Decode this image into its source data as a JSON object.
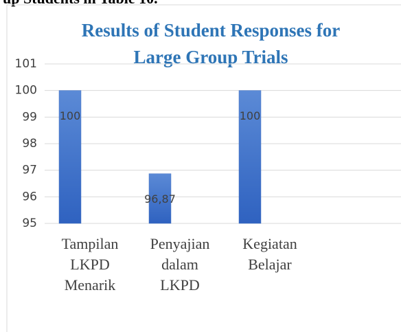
{
  "heading": "up Students in Table 10.",
  "chart_data": {
    "type": "bar",
    "title": [
      "Results of Student Responses for",
      "Large Group Trials"
    ],
    "categories": [
      "Tampilan LKPD Menarik",
      "Penyajian dalam LKPD",
      "Kegiatan Belajar"
    ],
    "values": [
      100,
      96.87,
      100
    ],
    "value_labels": [
      "100",
      "96,87",
      "100"
    ],
    "color": "#4472c4",
    "ylim": [
      95,
      101
    ],
    "yticks": [
      95,
      96,
      97,
      98,
      99,
      100,
      101
    ],
    "grid": true
  }
}
